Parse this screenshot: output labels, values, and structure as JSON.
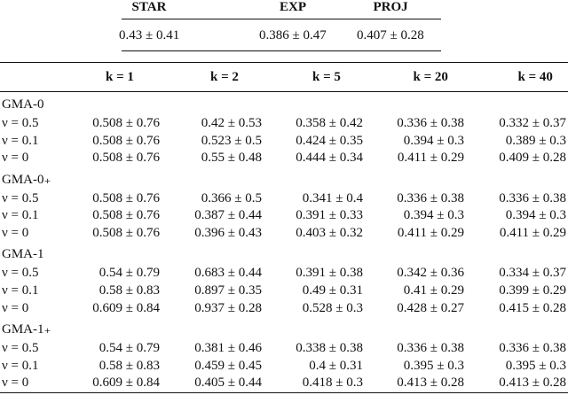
{
  "summary": {
    "headers": [
      "STAR",
      "EXP",
      "PROJ"
    ],
    "values": [
      "0.43 ± 0.41",
      "0.386 ± 0.47",
      "0.407 ± 0.28"
    ]
  },
  "table": {
    "columns": [
      "k = 1",
      "k = 2",
      "k = 5",
      "k = 20",
      "k = 40"
    ],
    "groups": [
      {
        "name": "GMA-0",
        "rows": [
          {
            "label": "ν = 0.5",
            "cells": [
              "0.508 ± 0.76",
              "0.42 ± 0.53",
              "0.358 ± 0.42",
              "0.336 ± 0.38",
              "0.332 ± 0.37"
            ]
          },
          {
            "label": "ν = 0.1",
            "cells": [
              "0.508 ± 0.76",
              "0.523 ± 0.5",
              "0.424 ± 0.35",
              "0.394 ± 0.3",
              "0.389 ± 0.3"
            ]
          },
          {
            "label": "ν = 0",
            "cells": [
              "0.508 ± 0.76",
              "0.55 ± 0.48",
              "0.444 ± 0.34",
              "0.411 ± 0.29",
              "0.409 ± 0.28"
            ]
          }
        ]
      },
      {
        "name": "GMA-0₊",
        "rows": [
          {
            "label": "ν = 0.5",
            "cells": [
              "0.508 ± 0.76",
              "0.366 ± 0.5",
              "0.341 ± 0.4",
              "0.336 ± 0.38",
              "0.336 ± 0.38"
            ]
          },
          {
            "label": "ν = 0.1",
            "cells": [
              "0.508 ± 0.76",
              "0.387 ± 0.44",
              "0.391 ± 0.33",
              "0.394 ± 0.3",
              "0.394 ± 0.3"
            ]
          },
          {
            "label": "ν = 0",
            "cells": [
              "0.508 ± 0.76",
              "0.396 ± 0.43",
              "0.403 ± 0.32",
              "0.411 ± 0.29",
              "0.411 ± 0.29"
            ]
          }
        ]
      },
      {
        "name": "GMA-1",
        "rows": [
          {
            "label": "ν = 0.5",
            "cells": [
              "0.54 ± 0.79",
              "0.683 ± 0.44",
              "0.391 ± 0.38",
              "0.342 ± 0.36",
              "0.334 ± 0.37"
            ]
          },
          {
            "label": "ν = 0.1",
            "cells": [
              "0.58 ± 0.83",
              "0.897 ± 0.35",
              "0.49 ± 0.31",
              "0.41 ± 0.29",
              "0.399 ± 0.29"
            ]
          },
          {
            "label": "ν = 0",
            "cells": [
              "0.609 ± 0.84",
              "0.937 ± 0.28",
              "0.528 ± 0.3",
              "0.428 ± 0.27",
              "0.415 ± 0.28"
            ]
          }
        ]
      },
      {
        "name": "GMA-1₊",
        "rows": [
          {
            "label": "ν = 0.5",
            "cells": [
              "0.54 ± 0.79",
              "0.381 ± 0.46",
              "0.338 ± 0.38",
              "0.336 ± 0.38",
              "0.336 ± 0.38"
            ]
          },
          {
            "label": "ν = 0.1",
            "cells": [
              "0.58 ± 0.83",
              "0.459 ± 0.45",
              "0.4 ± 0.31",
              "0.395 ± 0.3",
              "0.395 ± 0.3"
            ]
          },
          {
            "label": "ν = 0",
            "cells": [
              "0.609 ± 0.84",
              "0.405 ± 0.44",
              "0.418 ± 0.3",
              "0.413 ± 0.28",
              "0.413 ± 0.28"
            ]
          }
        ]
      }
    ]
  }
}
